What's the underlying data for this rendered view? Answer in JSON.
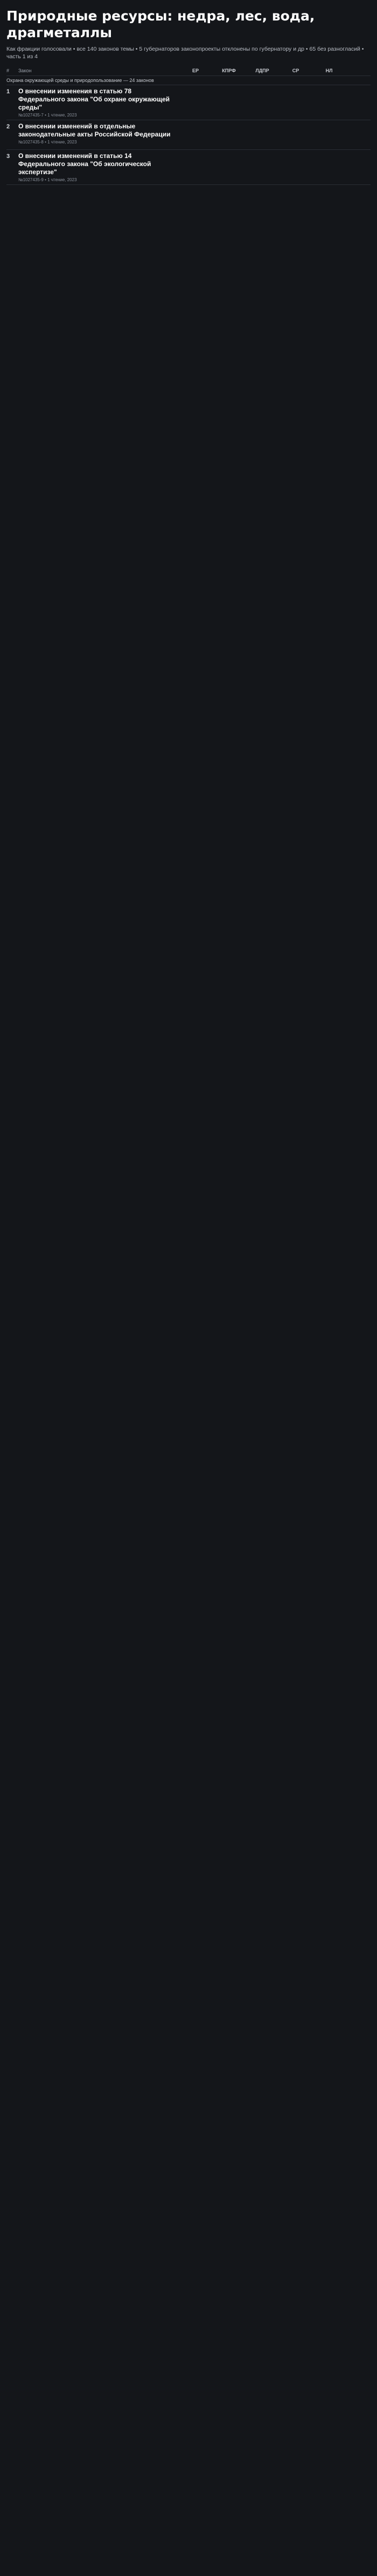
{
  "page": {
    "title": "Природные ресурсы: недра, лес, вода, драгметаллы",
    "subtitle": "Как фракции голосовали • все 140 законов темы • 5 губернаторов законопроекты отклонены по губернатору и др • 65 без разногласий • часть 1 из 4"
  },
  "columns": {
    "num": "#",
    "law": "Закон",
    "factions": [
      "ЕР",
      "КПРФ",
      "ЛДПР",
      "СР",
      "НЛ"
    ]
  },
  "section": {
    "label": "Охрана окружающей среды и природопользование — 24 законов"
  },
  "rows": [
    {
      "num": "1",
      "title": "О внесении изменения в статью 78 Федерального закона \"Об охране окружающей среды\"",
      "meta": "№1027435-7 • 1 чтение, 2023"
    },
    {
      "num": "2",
      "title": "О внесении изменений в отдельные законодательные акты Российской Федерации",
      "meta": "№1027435-8 • 1 чтение, 2023"
    },
    {
      "num": "3",
      "title": "О внесении изменений в статью 14 Федерального закона \"Об экологической экспертизе\"",
      "meta": "№1027435-9 • 1 чтение, 2023"
    }
  ]
}
